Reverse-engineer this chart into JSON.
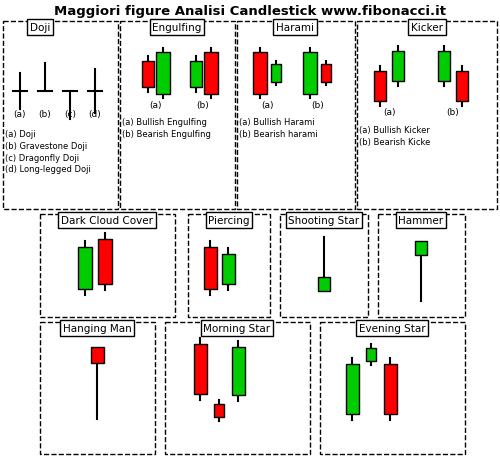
{
  "title": "Maggiori figure Analisi Candlestick www.fibonacci.it",
  "bg_color": "#ffffff",
  "red": "#ff0000",
  "green": "#00cc00",
  "black": "#000000",
  "section_labels": {
    "doji": "Doji",
    "engulfing": "Engulfing",
    "harami": "Harami",
    "kicker": "Kicker",
    "dark_cloud": "Dark Cloud Cover",
    "piercing": "Piercing",
    "shooting_star": "Shooting Star",
    "hammer": "Hammer",
    "hanging_man": "Hanging Man",
    "morning_star": "Morning Star",
    "evening_star": "Evening Star"
  },
  "desc_labels": {
    "doji": "(a) Doji\n(b) Gravestone Doji\n(c) Dragonfly Doji\n(d) Long-legged Doji",
    "engulfing": "(a) Bullish Engulfing\n(b) Bearish Engulfing",
    "harami": "(a) Bullish Harami\n(b) Bearish harami",
    "kicker": "(a) Bullish Kicker\n(b) Bearish Kicke"
  }
}
